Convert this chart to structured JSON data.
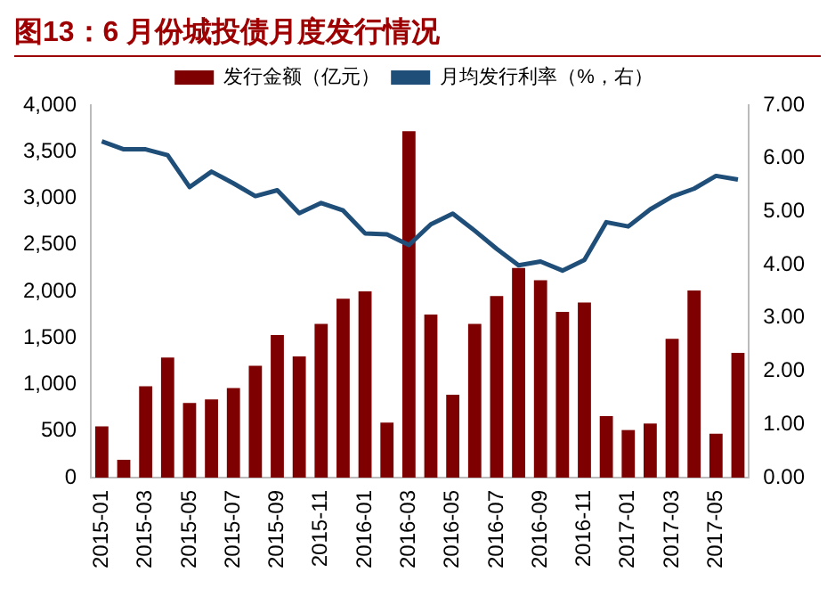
{
  "chart_data": {
    "type": "bar",
    "title": "图13：6 月份城投债月度发行情况",
    "categories": [
      "2015-01",
      null,
      "2015-03",
      null,
      "2015-05",
      null,
      "2015-07",
      null,
      "2015-09",
      null,
      "2015-11",
      null,
      "2016-01",
      null,
      "2016-03",
      null,
      "2016-05",
      null,
      "2016-07",
      null,
      "2016-09",
      null,
      "2016-11",
      null,
      "2017-01",
      null,
      "2017-03",
      null,
      "2017-05",
      null
    ],
    "series": [
      {
        "name": "发行金额（亿元）",
        "color": "#7f0000",
        "values": [
          550,
          190,
          980,
          1290,
          800,
          840,
          960,
          1200,
          1530,
          1300,
          1650,
          1920,
          2000,
          590,
          3720,
          1750,
          890,
          1650,
          1950,
          2250,
          2120,
          1780,
          1880,
          660,
          510,
          580,
          1490,
          2010,
          470,
          1340
        ]
      },
      {
        "name": "月均发行利率（%，右）",
        "type": "line",
        "axis": "y2",
        "color": "#1f4e79",
        "values": [
          6.32,
          6.17,
          6.17,
          6.06,
          5.46,
          5.75,
          5.53,
          5.29,
          5.4,
          4.97,
          5.16,
          5.02,
          4.59,
          4.57,
          4.37,
          4.76,
          4.96,
          4.64,
          4.3,
          3.99,
          4.06,
          3.89,
          4.09,
          4.8,
          4.72,
          5.04,
          5.28,
          5.43,
          5.67,
          5.6
        ]
      }
    ],
    "ylim": [
      0,
      4000
    ],
    "yticks": [
      0,
      {
        "value": 500,
        "label": "500"
      },
      {
        "value": 1000,
        "label": "1,000"
      },
      {
        "value": 1500,
        "label": "1,500"
      },
      {
        "value": 2000,
        "label": "2,000"
      },
      {
        "value": 2500,
        "label": "2,500"
      },
      {
        "value": 3000,
        "label": "3,000"
      },
      {
        "value": 3500,
        "label": "3,500"
      },
      {
        "value": 4000,
        "label": "4,000"
      }
    ],
    "y2lim": [
      0,
      7
    ],
    "y2ticks": [
      {
        "value": 0,
        "label": "0.00"
      },
      {
        "value": 1,
        "label": "1.00"
      },
      {
        "value": 2,
        "label": "2.00"
      },
      {
        "value": 3,
        "label": "3.00"
      },
      {
        "value": 4,
        "label": "4.00"
      },
      {
        "value": 5,
        "label": "5.00"
      },
      {
        "value": 6,
        "label": "6.00"
      },
      {
        "value": 7,
        "label": "7.00"
      }
    ],
    "legend": "top",
    "grid": false,
    "marker": "none",
    "line_style": "solid"
  }
}
